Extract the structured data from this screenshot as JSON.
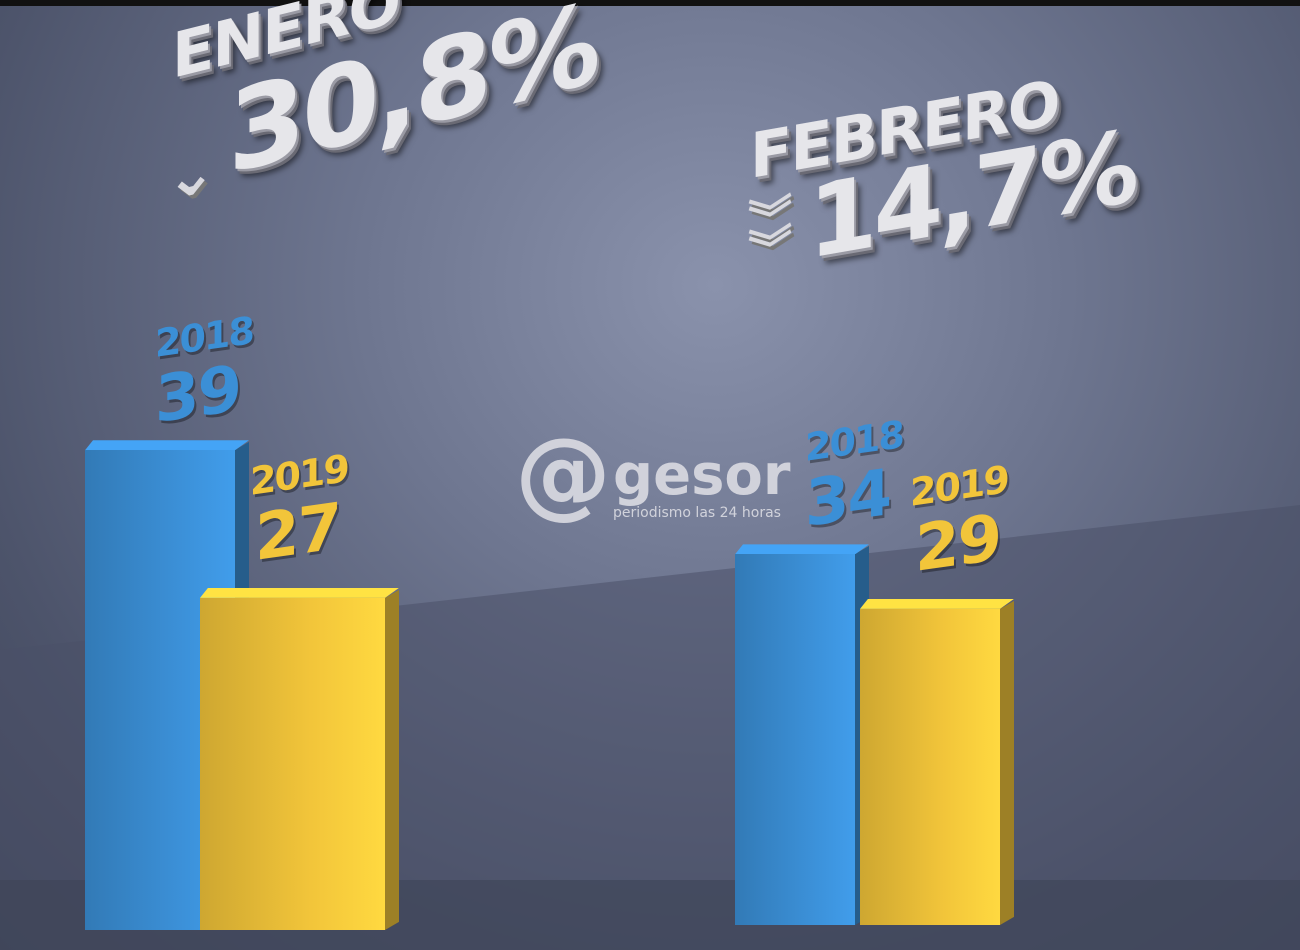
{
  "chart_data": {
    "type": "bar",
    "categories": [
      "ENERO",
      "FEBRERO"
    ],
    "series": [
      {
        "name": "2018",
        "values": [
          39,
          34
        ],
        "color": "#3b8fd6"
      },
      {
        "name": "2019",
        "values": [
          27,
          29
        ],
        "color": "#f2c53a"
      }
    ],
    "annotations": [
      {
        "month": "ENERO",
        "change": "30,8%",
        "direction": "down"
      },
      {
        "month": "FEBRERO",
        "change": "14,7%",
        "direction": "down"
      }
    ],
    "grid": false
  },
  "watermark": {
    "symbol": "@",
    "name": "gesor",
    "tagline": "periodismo las 24 horas"
  },
  "colors": {
    "blue": "#3b8fd6",
    "yellow": "#f2c53a",
    "text": "#e6e6ea"
  }
}
